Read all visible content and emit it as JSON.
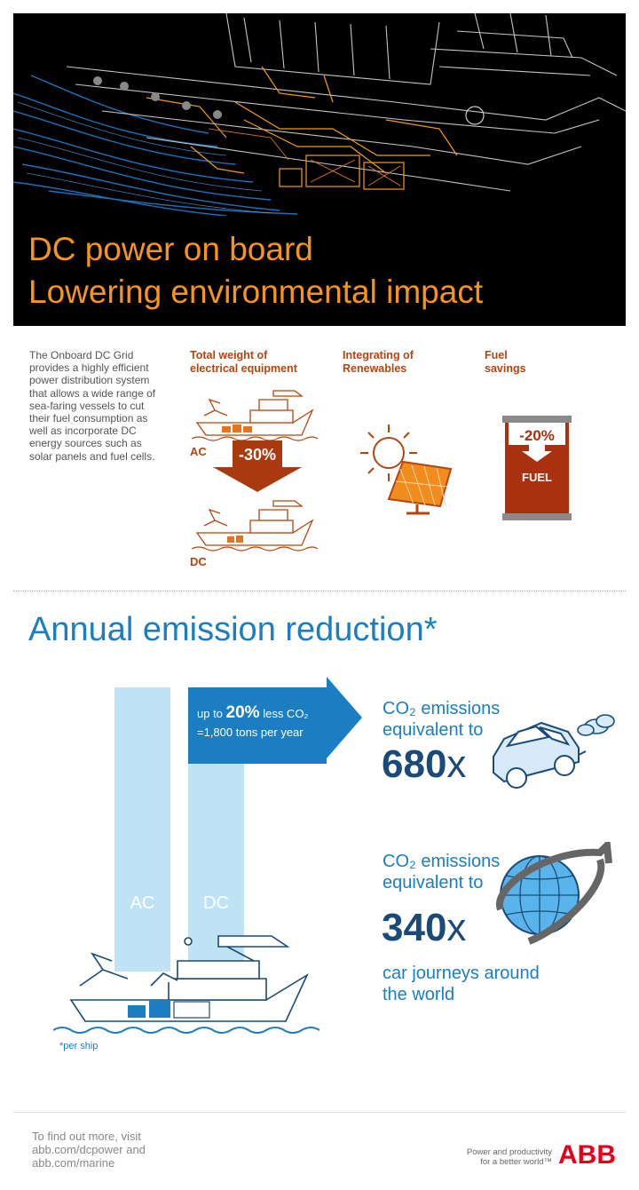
{
  "hero": {
    "title_line1": "DC power on board",
    "title_line2": "Lowering environmental impact"
  },
  "intro": {
    "text": "The Onboard DC Grid provides a highly efficient power distribution system that allows a wide range of sea-faring vessels to cut their fuel consumption as well as incorporate DC energy sources such as solar panels and fuel cells."
  },
  "weight": {
    "heading": "Total weight of electrical equipment",
    "ac_label": "AC",
    "dc_label": "DC",
    "reduction": "-30%"
  },
  "renewables": {
    "heading": "Integrating of Renewables"
  },
  "fuel": {
    "heading": "Fuel savings",
    "reduction": "-20%",
    "label": "FUEL"
  },
  "emission": {
    "title": "Annual emission reduction*",
    "ac_bar": "AC",
    "dc_bar": "DC",
    "arrow_prefix": "up to",
    "arrow_percent": "20%",
    "arrow_suffix": "less CO₂",
    "arrow_line2": "=1,800 tons per year",
    "eq1_line1": "CO₂ emissions",
    "eq1_line2": "equivalent to",
    "eq1_value": "680",
    "eq1_unit": "x",
    "eq2_line1": "CO₂ emissions",
    "eq2_line2": "equivalent to",
    "eq2_value": "340",
    "eq2_unit": "x",
    "journey_line1": "car journeys around",
    "journey_line2": "the world",
    "footnote": "*per ship"
  },
  "footer": {
    "line1": "To find out more, visit",
    "line2": "abb.com/dcpower and",
    "line3": "abb.com/marine",
    "tagline1": "Power and productivity",
    "tagline2": "for a better world™",
    "logo": "ABB"
  },
  "colors": {
    "orange": "#f7941d",
    "rust": "#b5450f",
    "blue": "#1b7ec2",
    "navy": "#1a4a78",
    "light_blue": "#bfe3f5"
  }
}
